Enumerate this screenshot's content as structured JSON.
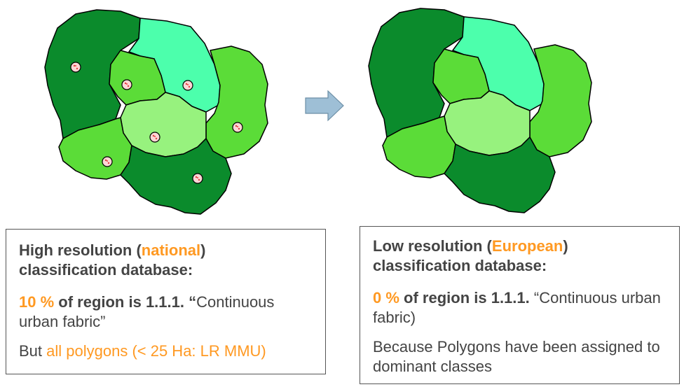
{
  "colors": {
    "dark_green": "#0b8b2c",
    "mid_green": "#5bdc38",
    "light_green": "#97f27e",
    "aqua": "#4cffac",
    "urban_patch": "#ffd6d6",
    "accent_orange": "#ff9922",
    "arrow_fill": "#9ebfd6"
  },
  "left_box": {
    "line1_pre": "High resolution (",
    "line1_highlight": "national",
    "line1_post": ")",
    "line2": "classification database:",
    "stat_pct": "10 %",
    "stat_bold": " of region is 1.1.1. “",
    "stat_rest": "Continuous urban fabric”",
    "note_pre": "But ",
    "note_highlight": "all polygons (< 25 Ha: LR MMU)"
  },
  "right_box": {
    "line1_pre": "Low resolution (",
    "line1_highlight": "European",
    "line1_post": ")",
    "line2": "classification database:",
    "stat_pct": "0 %",
    "stat_bold": " of region is 1.1.1.",
    "stat_rest": " “Continuous urban fabric)",
    "note": "Because Polygons have been assigned to dominant classes"
  }
}
